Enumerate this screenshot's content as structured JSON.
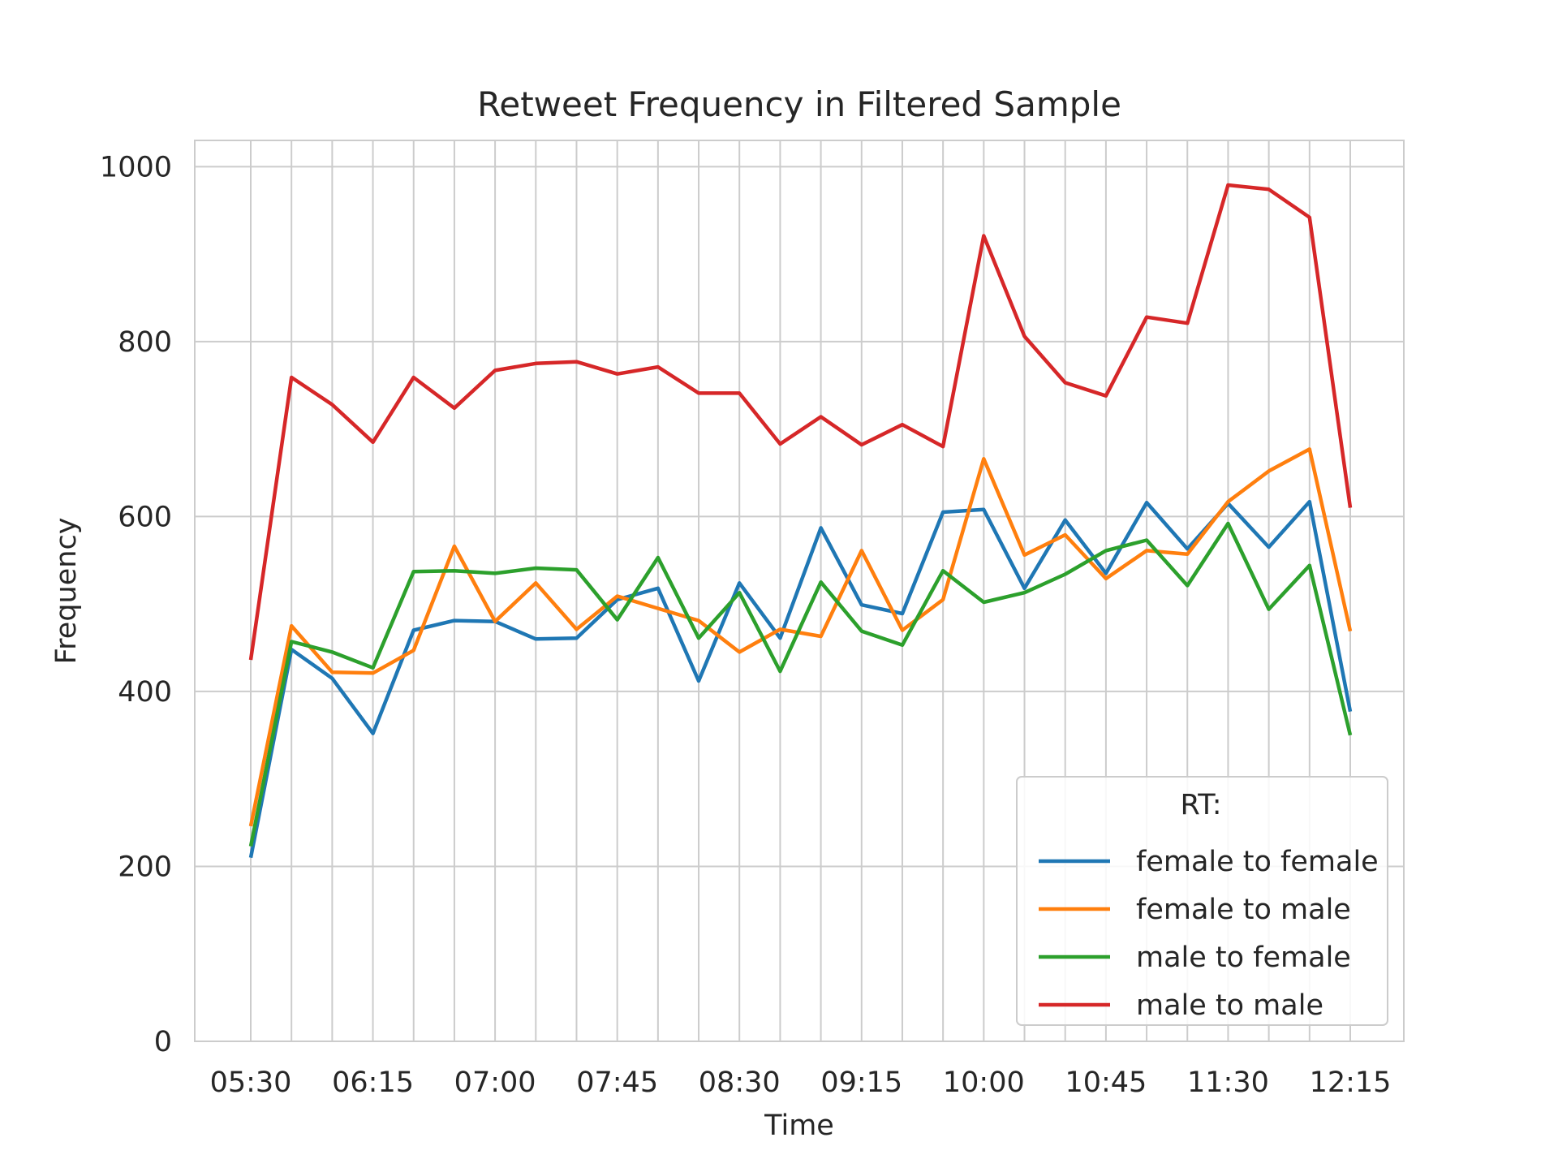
{
  "chart_data": {
    "type": "line",
    "title": "Retweet Frequency in Filtered Sample",
    "xlabel": "Time",
    "ylabel": "Frequency",
    "x": [
      "05:30",
      "05:45",
      "06:00",
      "06:15",
      "06:30",
      "06:45",
      "07:00",
      "07:15",
      "07:30",
      "07:45",
      "08:00",
      "08:15",
      "08:30",
      "08:45",
      "09:00",
      "09:15",
      "09:30",
      "09:45",
      "10:00",
      "10:15",
      "10:30",
      "10:45",
      "11:00",
      "11:15",
      "11:30",
      "11:45",
      "12:00",
      "12:15"
    ],
    "xtick_labels": [
      "05:30",
      "06:15",
      "07:00",
      "07:45",
      "08:30",
      "09:15",
      "10:00",
      "10:45",
      "11:30",
      "12:15"
    ],
    "ylim": [
      0,
      1030
    ],
    "yticks": [
      0,
      200,
      400,
      600,
      800,
      1000
    ],
    "grid": true,
    "legend": {
      "title": "RT:",
      "position": "bottom-right"
    },
    "series": [
      {
        "name": "female to female",
        "color": "#1f77b4",
        "values": [
          210,
          448,
          415,
          352,
          470,
          481,
          480,
          460,
          461,
          505,
          518,
          412,
          524,
          461,
          587,
          499,
          489,
          605,
          608,
          518,
          596,
          535,
          616,
          563,
          615,
          565,
          617,
          377
        ]
      },
      {
        "name": "female to male",
        "color": "#ff7f0e",
        "values": [
          246,
          475,
          422,
          421,
          447,
          566,
          480,
          524,
          471,
          509,
          495,
          481,
          445,
          471,
          463,
          561,
          470,
          505,
          666,
          556,
          579,
          529,
          561,
          557,
          617,
          652,
          677,
          469
        ]
      },
      {
        "name": "male to female",
        "color": "#2ca02c",
        "values": [
          223,
          457,
          445,
          427,
          537,
          538,
          535,
          541,
          539,
          482,
          553,
          461,
          513,
          423,
          525,
          469,
          453,
          538,
          502,
          513,
          534,
          561,
          573,
          521,
          592,
          494,
          544,
          350
        ]
      },
      {
        "name": "male to male",
        "color": "#d62728",
        "values": [
          436,
          759,
          728,
          685,
          759,
          724,
          767,
          775,
          777,
          763,
          771,
          741,
          741,
          683,
          714,
          682,
          705,
          680,
          921,
          806,
          753,
          738,
          828,
          821,
          979,
          974,
          942,
          610
        ]
      }
    ]
  }
}
